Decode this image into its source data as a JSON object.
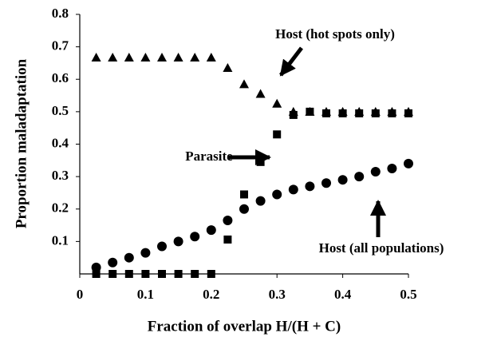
{
  "chart_data": {
    "type": "scatter",
    "x_label": "Fraction of overlap H/(H + C)",
    "y_label": "Proportion maladaptation",
    "x": [
      0.025,
      0.05,
      0.075,
      0.1,
      0.125,
      0.15,
      0.175,
      0.2,
      0.225,
      0.25,
      0.275,
      0.3,
      0.325,
      0.35,
      0.375,
      0.4,
      0.425,
      0.45,
      0.475,
      0.5
    ],
    "series": [
      {
        "name": "Host (hot spots only)",
        "color": "#000000",
        "marker": "triangle",
        "values": [
          0.667,
          0.667,
          0.667,
          0.667,
          0.667,
          0.667,
          0.667,
          0.667,
          0.635,
          0.585,
          0.555,
          0.525,
          0.5,
          0.5,
          0.5,
          0.5,
          0.5,
          0.5,
          0.5,
          0.5
        ]
      },
      {
        "name": "Parasite",
        "color": "#000000",
        "marker": "square",
        "values": [
          0,
          0,
          0,
          0,
          0,
          0,
          0,
          0,
          0.106,
          0.245,
          0.345,
          0.43,
          0.49,
          0.5,
          0.495,
          0.495,
          0.495,
          0.495,
          0.495,
          0.495
        ]
      },
      {
        "name": "Host (all populations)",
        "color": "#000000",
        "marker": "circle",
        "values": [
          0.02,
          0.035,
          0.05,
          0.065,
          0.085,
          0.1,
          0.115,
          0.135,
          0.165,
          0.2,
          0.225,
          0.245,
          0.26,
          0.27,
          0.28,
          0.29,
          0.3,
          0.315,
          0.325,
          0.34
        ]
      }
    ],
    "xlim": [
      0,
      0.5
    ],
    "xticks": [
      0,
      0.1,
      0.2,
      0.3,
      0.4,
      0.5
    ],
    "ylim": [
      0,
      0.8
    ],
    "yticks": [
      0.1,
      0.2,
      0.3,
      0.4,
      0.5,
      0.6,
      0.7,
      0.8
    ],
    "grid": false
  }
}
